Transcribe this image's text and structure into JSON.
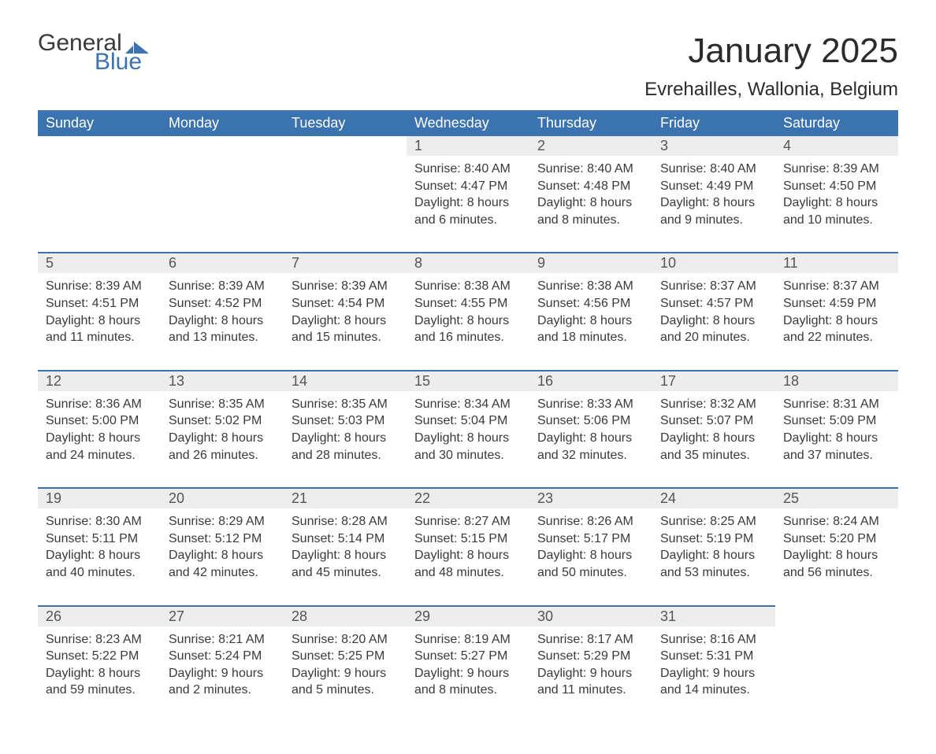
{
  "logo": {
    "text1": "General",
    "text2": "Blue",
    "accent_color": "#3b72b0"
  },
  "title": "January 2025",
  "location": "Evrehailles, Wallonia, Belgium",
  "colors": {
    "header_bg": "#3b72b0",
    "header_text": "#ffffff",
    "daynum_bg": "#ededed",
    "row_border": "#3b72b0",
    "body_text": "#3a3a3a"
  },
  "weekdays": [
    "Sunday",
    "Monday",
    "Tuesday",
    "Wednesday",
    "Thursday",
    "Friday",
    "Saturday"
  ],
  "weeks": [
    [
      null,
      null,
      null,
      {
        "n": "1",
        "sunrise": "8:40 AM",
        "sunset": "4:47 PM",
        "daylight": "8 hours and 6 minutes."
      },
      {
        "n": "2",
        "sunrise": "8:40 AM",
        "sunset": "4:48 PM",
        "daylight": "8 hours and 8 minutes."
      },
      {
        "n": "3",
        "sunrise": "8:40 AM",
        "sunset": "4:49 PM",
        "daylight": "8 hours and 9 minutes."
      },
      {
        "n": "4",
        "sunrise": "8:39 AM",
        "sunset": "4:50 PM",
        "daylight": "8 hours and 10 minutes."
      }
    ],
    [
      {
        "n": "5",
        "sunrise": "8:39 AM",
        "sunset": "4:51 PM",
        "daylight": "8 hours and 11 minutes."
      },
      {
        "n": "6",
        "sunrise": "8:39 AM",
        "sunset": "4:52 PM",
        "daylight": "8 hours and 13 minutes."
      },
      {
        "n": "7",
        "sunrise": "8:39 AM",
        "sunset": "4:54 PM",
        "daylight": "8 hours and 15 minutes."
      },
      {
        "n": "8",
        "sunrise": "8:38 AM",
        "sunset": "4:55 PM",
        "daylight": "8 hours and 16 minutes."
      },
      {
        "n": "9",
        "sunrise": "8:38 AM",
        "sunset": "4:56 PM",
        "daylight": "8 hours and 18 minutes."
      },
      {
        "n": "10",
        "sunrise": "8:37 AM",
        "sunset": "4:57 PM",
        "daylight": "8 hours and 20 minutes."
      },
      {
        "n": "11",
        "sunrise": "8:37 AM",
        "sunset": "4:59 PM",
        "daylight": "8 hours and 22 minutes."
      }
    ],
    [
      {
        "n": "12",
        "sunrise": "8:36 AM",
        "sunset": "5:00 PM",
        "daylight": "8 hours and 24 minutes."
      },
      {
        "n": "13",
        "sunrise": "8:35 AM",
        "sunset": "5:02 PM",
        "daylight": "8 hours and 26 minutes."
      },
      {
        "n": "14",
        "sunrise": "8:35 AM",
        "sunset": "5:03 PM",
        "daylight": "8 hours and 28 minutes."
      },
      {
        "n": "15",
        "sunrise": "8:34 AM",
        "sunset": "5:04 PM",
        "daylight": "8 hours and 30 minutes."
      },
      {
        "n": "16",
        "sunrise": "8:33 AM",
        "sunset": "5:06 PM",
        "daylight": "8 hours and 32 minutes."
      },
      {
        "n": "17",
        "sunrise": "8:32 AM",
        "sunset": "5:07 PM",
        "daylight": "8 hours and 35 minutes."
      },
      {
        "n": "18",
        "sunrise": "8:31 AM",
        "sunset": "5:09 PM",
        "daylight": "8 hours and 37 minutes."
      }
    ],
    [
      {
        "n": "19",
        "sunrise": "8:30 AM",
        "sunset": "5:11 PM",
        "daylight": "8 hours and 40 minutes."
      },
      {
        "n": "20",
        "sunrise": "8:29 AM",
        "sunset": "5:12 PM",
        "daylight": "8 hours and 42 minutes."
      },
      {
        "n": "21",
        "sunrise": "8:28 AM",
        "sunset": "5:14 PM",
        "daylight": "8 hours and 45 minutes."
      },
      {
        "n": "22",
        "sunrise": "8:27 AM",
        "sunset": "5:15 PM",
        "daylight": "8 hours and 48 minutes."
      },
      {
        "n": "23",
        "sunrise": "8:26 AM",
        "sunset": "5:17 PM",
        "daylight": "8 hours and 50 minutes."
      },
      {
        "n": "24",
        "sunrise": "8:25 AM",
        "sunset": "5:19 PM",
        "daylight": "8 hours and 53 minutes."
      },
      {
        "n": "25",
        "sunrise": "8:24 AM",
        "sunset": "5:20 PM",
        "daylight": "8 hours and 56 minutes."
      }
    ],
    [
      {
        "n": "26",
        "sunrise": "8:23 AM",
        "sunset": "5:22 PM",
        "daylight": "8 hours and 59 minutes."
      },
      {
        "n": "27",
        "sunrise": "8:21 AM",
        "sunset": "5:24 PM",
        "daylight": "9 hours and 2 minutes."
      },
      {
        "n": "28",
        "sunrise": "8:20 AM",
        "sunset": "5:25 PM",
        "daylight": "9 hours and 5 minutes."
      },
      {
        "n": "29",
        "sunrise": "8:19 AM",
        "sunset": "5:27 PM",
        "daylight": "9 hours and 8 minutes."
      },
      {
        "n": "30",
        "sunrise": "8:17 AM",
        "sunset": "5:29 PM",
        "daylight": "9 hours and 11 minutes."
      },
      {
        "n": "31",
        "sunrise": "8:16 AM",
        "sunset": "5:31 PM",
        "daylight": "9 hours and 14 minutes."
      },
      null
    ]
  ],
  "labels": {
    "sunrise": "Sunrise: ",
    "sunset": "Sunset: ",
    "daylight": "Daylight: "
  }
}
